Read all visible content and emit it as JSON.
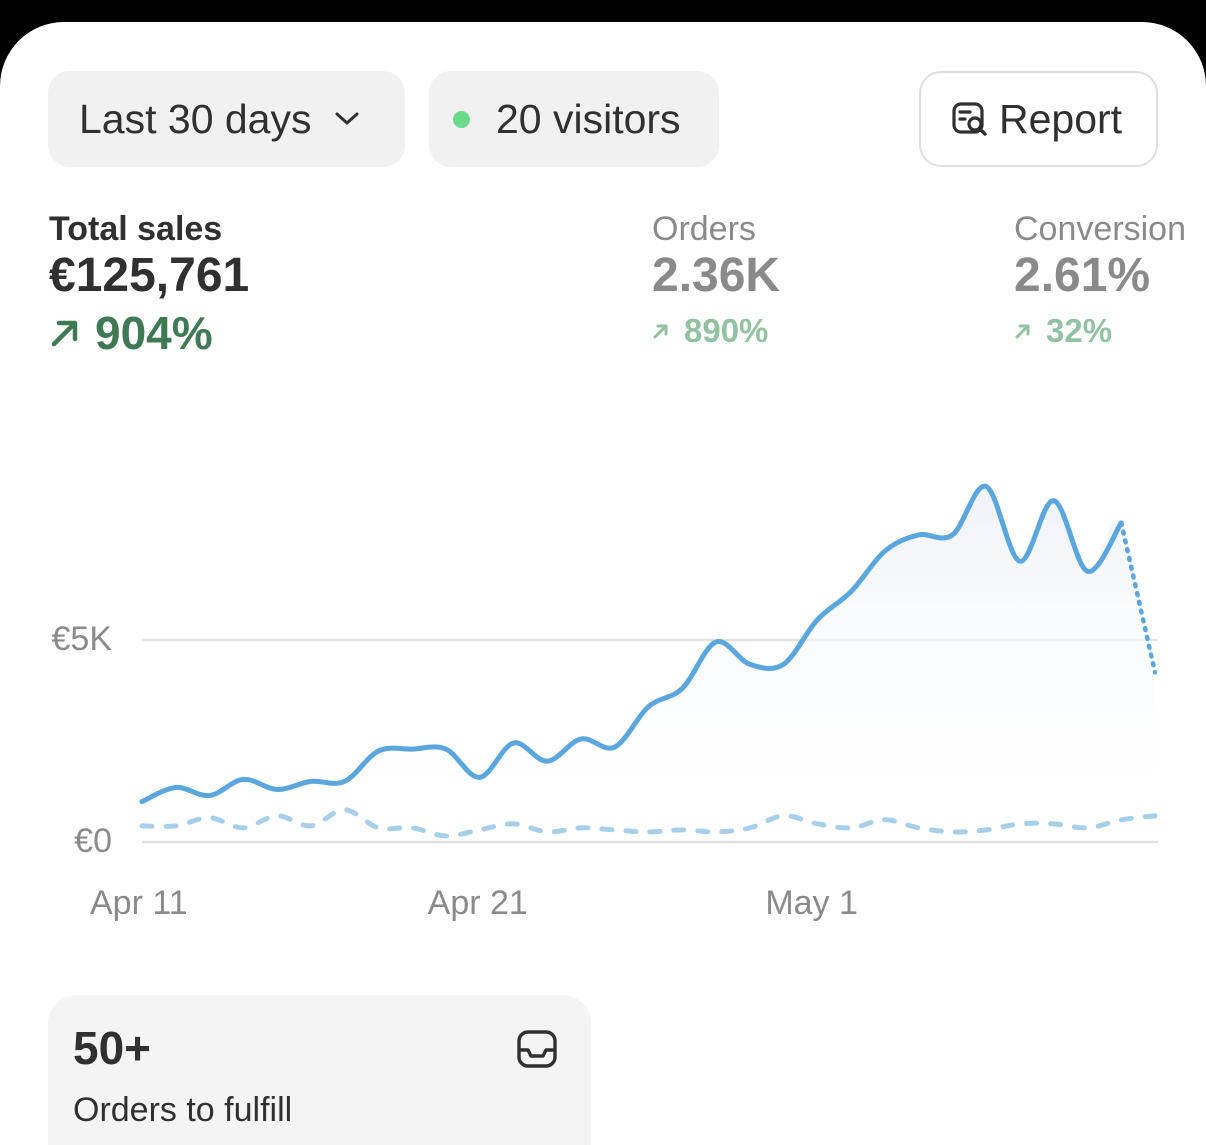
{
  "filters": {
    "date_range": "Last 30 days",
    "visitors": "20 visitors",
    "report_label": "Report",
    "live_dot_color": "#6bd98c"
  },
  "metrics": [
    {
      "label": "Total sales",
      "value": "€125,761",
      "delta": "904%"
    },
    {
      "label": "Orders",
      "value": "2.36K",
      "delta": "890%"
    },
    {
      "label": "Conversion",
      "value": "2.61%",
      "delta": "32%"
    }
  ],
  "chart_data": {
    "type": "line",
    "ylim": [
      0,
      10000
    ],
    "yticks": [
      {
        "value": 0,
        "label": "€0"
      },
      {
        "value": 5000,
        "label": "€5K"
      }
    ],
    "xticks": [
      {
        "day": 0,
        "label": "Apr 11"
      },
      {
        "day": 10,
        "label": "Apr 21"
      },
      {
        "day": 20,
        "label": "May 1"
      }
    ],
    "series": [
      {
        "style": "solid",
        "color": "#5aa6dd",
        "values": [
          1000,
          1350,
          1150,
          1550,
          1300,
          1500,
          1500,
          2250,
          2300,
          2300,
          1600,
          2450,
          2000,
          2550,
          2350,
          3350,
          3800,
          4950,
          4400,
          4400,
          5500,
          6200,
          7200,
          7600,
          7600,
          8800,
          6950,
          8450,
          6700,
          7900,
          4200
        ],
        "last_point_projected": true
      },
      {
        "style": "dashed",
        "color": "#a8cfea",
        "values": [
          400,
          400,
          600,
          350,
          650,
          400,
          800,
          350,
          350,
          150,
          300,
          450,
          250,
          350,
          300,
          250,
          300,
          250,
          350,
          650,
          450,
          350,
          550,
          350,
          250,
          300,
          450,
          450,
          350,
          550,
          650
        ]
      }
    ]
  },
  "fulfill_card": {
    "count": "50+",
    "label": "Orders to fulfill"
  }
}
